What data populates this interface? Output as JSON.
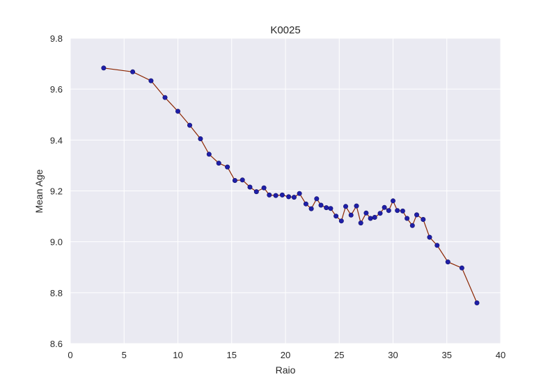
{
  "chart_data": {
    "type": "line",
    "title": "K0025",
    "xlabel": "Raio",
    "ylabel": "Mean Age",
    "xlim": [
      0,
      40
    ],
    "ylim": [
      8.6,
      9.8
    ],
    "xticks": [
      0,
      5,
      10,
      15,
      20,
      25,
      30,
      35,
      40
    ],
    "xtick_labels": [
      "0",
      "5",
      "10",
      "15",
      "20",
      "25",
      "30",
      "35",
      "40"
    ],
    "yticks": [
      8.6,
      8.8,
      9.0,
      9.2,
      9.4,
      9.6,
      9.8
    ],
    "ytick_labels": [
      "8.6",
      "8.8",
      "9.0",
      "9.2",
      "9.4",
      "9.6",
      "9.8"
    ],
    "grid": true,
    "legend": "none",
    "line_color": "#8b2500",
    "marker_color": "#1f1fa8",
    "plot_background": "#eaeaf2",
    "series": [
      {
        "x": [
          3.1,
          5.8,
          7.5,
          8.8,
          10.0,
          11.1,
          12.1,
          12.9,
          13.8,
          14.6,
          15.3,
          16.0,
          16.7,
          17.3,
          18.0,
          18.5,
          19.1,
          19.7,
          20.3,
          20.8,
          21.3,
          21.9,
          22.4,
          22.9,
          23.3,
          23.8,
          24.2,
          24.7,
          25.2,
          25.6,
          26.1,
          26.6,
          27.0,
          27.5,
          27.9,
          28.3,
          28.8,
          29.2,
          29.6,
          30.0,
          30.4,
          30.9,
          31.3,
          31.8,
          32.2,
          32.8,
          33.4,
          34.1,
          35.1,
          36.4,
          37.8
        ],
        "y": [
          9.683,
          9.668,
          9.633,
          9.567,
          9.513,
          9.458,
          9.405,
          9.344,
          9.309,
          9.294,
          9.241,
          9.243,
          9.215,
          9.197,
          9.212,
          9.184,
          9.182,
          9.184,
          9.177,
          9.175,
          9.19,
          9.149,
          9.13,
          9.169,
          9.144,
          9.134,
          9.131,
          9.101,
          9.082,
          9.139,
          9.105,
          9.141,
          9.074,
          9.113,
          9.092,
          9.096,
          9.112,
          9.135,
          9.123,
          9.161,
          9.123,
          9.121,
          9.092,
          9.064,
          9.106,
          9.088,
          9.018,
          8.986,
          8.921,
          8.897,
          8.76
        ]
      }
    ]
  }
}
